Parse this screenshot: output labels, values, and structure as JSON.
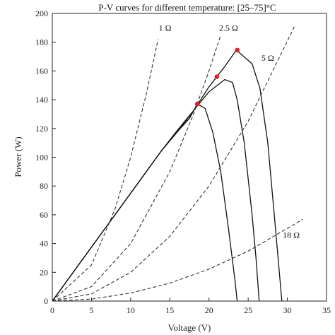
{
  "chart_data": {
    "type": "line",
    "title": "P-V curves for different temperature: [25–75]°C",
    "xlabel": "Voltage (V)",
    "ylabel": "Power (W)",
    "xlim": [
      0,
      35
    ],
    "ylim": [
      0,
      200
    ],
    "x_ticks": [
      0,
      5,
      10,
      15,
      20,
      25,
      30,
      35
    ],
    "y_ticks": [
      0,
      20,
      40,
      60,
      80,
      100,
      120,
      140,
      160,
      180,
      200
    ],
    "grid": false,
    "series": [
      {
        "style": "solid",
        "color": "#111111",
        "x": [
          0,
          5,
          10,
          14,
          16,
          20,
          22,
          23,
          23.6,
          24.5,
          25.5,
          26.0,
          26.4
        ],
        "y": [
          0,
          37.5,
          75,
          105,
          119,
          145.5,
          154,
          152,
          140,
          110,
          60,
          30,
          0
        ]
      },
      {
        "style": "solid",
        "color": "#111111",
        "x": [
          0,
          5,
          10,
          14,
          16,
          17.5,
          18.5,
          19.5,
          20.5,
          21.5,
          22.5,
          23.3,
          23.6
        ],
        "y": [
          0,
          37.5,
          75,
          105,
          118,
          127,
          137,
          134,
          117,
          90,
          50,
          15,
          0
        ]
      },
      {
        "style": "solid",
        "color": "#111111",
        "x": [
          0,
          5,
          10,
          14,
          16,
          18,
          20,
          22,
          23.5,
          25.5,
          26.5,
          27.5,
          28.5,
          29.3
        ],
        "y": [
          0,
          37.5,
          75,
          105,
          118,
          132,
          149,
          163,
          174.5,
          165,
          148,
          110,
          50,
          0
        ]
      },
      {
        "style": "dashed",
        "color": "#333333",
        "x": [
          0,
          5,
          8,
          10,
          12,
          13.5
        ],
        "y": [
          0,
          25,
          64,
          100,
          144,
          182
        ]
      },
      {
        "style": "dashed",
        "color": "#333333",
        "x": [
          0,
          5,
          10,
          15,
          18,
          20,
          21.5
        ],
        "y": [
          0,
          10,
          40,
          90,
          129.6,
          160,
          185
        ]
      },
      {
        "style": "dashed",
        "color": "#333333",
        "x": [
          0,
          5,
          10,
          15,
          20,
          25,
          31
        ],
        "y": [
          0,
          5,
          20,
          45,
          80,
          125,
          192
        ]
      },
      {
        "style": "dashed",
        "color": "#333333",
        "x": [
          0,
          5,
          10,
          15,
          20,
          25,
          32
        ],
        "y": [
          0,
          1.4,
          5.6,
          12.5,
          22.2,
          34.7,
          56.9
        ]
      }
    ],
    "mpp_points": [
      {
        "x": 18.5,
        "y": 137
      },
      {
        "x": 21.0,
        "y": 156
      },
      {
        "x": 23.6,
        "y": 174.5
      }
    ],
    "mpp_color": "#e0202a",
    "load_labels": [
      {
        "text": "1 Ω",
        "x": 14.4,
        "y": 188
      },
      {
        "text": "2.5 Ω",
        "x": 22.5,
        "y": 188
      },
      {
        "text": "5 Ω",
        "x": 27.5,
        "y": 167
      },
      {
        "text": "18 Ω",
        "x": 30.5,
        "y": 44
      }
    ]
  }
}
